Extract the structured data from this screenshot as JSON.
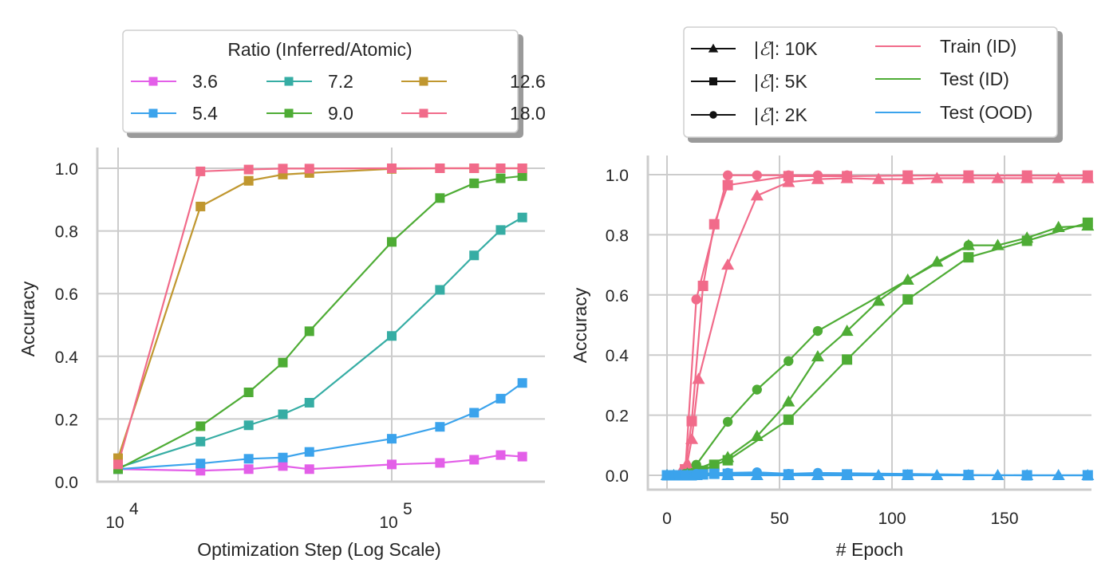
{
  "chart_data": [
    {
      "type": "line",
      "title": "",
      "xlabel": "Optimization Step (Log Scale)",
      "ylabel": "Accuracy",
      "xscale": "log",
      "xlim": [
        8500,
        340000
      ],
      "ylim": [
        -0.02,
        1.06
      ],
      "x_ticks": [
        {
          "value": 10000,
          "base": "10",
          "exp": "4"
        },
        {
          "value": 100000,
          "base": "10",
          "exp": "5"
        }
      ],
      "y_ticks": [
        "0.0",
        "0.2",
        "0.4",
        "0.6",
        "0.8",
        "1.0"
      ],
      "grid": true,
      "legend": {
        "title": "Ratio (Inferred/Atomic)",
        "placement": "top-center-outside",
        "columns": 3
      },
      "marker": "square",
      "x": [
        10000,
        20000,
        30000,
        40000,
        50000,
        100000,
        150000,
        200000,
        250000,
        300000
      ],
      "series": [
        {
          "name": "3.6",
          "color": "#e35fe8",
          "values": [
            0.04,
            0.035,
            0.04,
            0.05,
            0.04,
            0.055,
            0.06,
            0.07,
            0.085,
            0.08
          ]
        },
        {
          "name": "5.4",
          "color": "#3ba3ec",
          "values": [
            0.04,
            0.058,
            0.073,
            0.077,
            0.095,
            0.137,
            0.175,
            0.22,
            0.265,
            0.315
          ]
        },
        {
          "name": "7.2",
          "color": "#36ada4",
          "values": [
            0.045,
            0.128,
            0.18,
            0.215,
            0.252,
            0.465,
            0.612,
            0.722,
            0.803,
            0.843
          ]
        },
        {
          "name": "9.0",
          "color": "#4eac35",
          "values": [
            0.04,
            0.177,
            0.285,
            0.38,
            0.48,
            0.765,
            0.905,
            0.952,
            0.968,
            0.975
          ]
        },
        {
          "name": "12.6",
          "color": "#c0972f",
          "values": [
            0.075,
            0.878,
            0.96,
            0.98,
            0.985,
            0.998,
            1.0,
            1.0,
            1.0,
            1.0
          ]
        },
        {
          "name": "18.0",
          "color": "#f16b8a",
          "values": [
            0.055,
            0.99,
            0.996,
            0.999,
            0.999,
            1.0,
            1.0,
            1.0,
            1.0,
            1.0
          ]
        }
      ]
    },
    {
      "type": "line",
      "title": "",
      "xlabel": "# Epoch",
      "ylabel": "Accuracy",
      "xlim": [
        -9,
        195
      ],
      "ylim": [
        -0.05,
        1.06
      ],
      "x_ticks": [
        "0",
        "50",
        "100",
        "150"
      ],
      "y_ticks": [
        "0.0",
        "0.2",
        "0.4",
        "0.6",
        "0.8",
        "1.0"
      ],
      "grid": true,
      "legend": {
        "placement": "top-center-outside",
        "marker_entries": [
          {
            "label_prefix": "|",
            "label_symbol": "ℰ",
            "label_suffix": "|: 10K",
            "marker": "triangle"
          },
          {
            "label_prefix": "|",
            "label_symbol": "ℰ",
            "label_suffix": "|: 5K",
            "marker": "square"
          },
          {
            "label_prefix": "|",
            "label_symbol": "ℰ",
            "label_suffix": "|: 2K",
            "marker": "circle"
          }
        ],
        "color_entries": [
          {
            "label": "Train (ID)",
            "color": "#f16b8a"
          },
          {
            "label": "Test (ID)",
            "color": "#4eac35"
          },
          {
            "label": "Test (OOD)",
            "color": "#3ba3ec"
          }
        ]
      },
      "series": [
        {
          "name": "Train (ID), |E|: 10K",
          "color": "#f16b8a",
          "marker": "triangle",
          "x": [
            0,
            3,
            6,
            9,
            11,
            14,
            27,
            40,
            54,
            67,
            80,
            94,
            107,
            120,
            134,
            147,
            160,
            174,
            187
          ],
          "y": [
            0.0,
            0.0,
            0.01,
            0.04,
            0.12,
            0.32,
            0.7,
            0.93,
            0.975,
            0.985,
            0.988,
            0.985,
            0.985,
            0.988,
            0.988,
            0.988,
            0.988,
            0.988,
            0.988
          ]
        },
        {
          "name": "Train (ID), |E|: 5K",
          "color": "#f16b8a",
          "marker": "square",
          "x": [
            0,
            3,
            5,
            8,
            11,
            16,
            21,
            27,
            54,
            80,
            107,
            134,
            160,
            187
          ],
          "y": [
            0.0,
            0.0,
            0.0,
            0.02,
            0.18,
            0.63,
            0.835,
            0.965,
            0.995,
            0.995,
            0.997,
            0.997,
            0.997,
            0.997
          ]
        },
        {
          "name": "Train (ID), |E|: 2K",
          "color": "#f16b8a",
          "marker": "circle",
          "x": [
            0,
            3,
            5,
            8,
            13,
            27,
            40,
            54,
            67,
            80
          ],
          "y": [
            0.0,
            0.0,
            0.0,
            0.0,
            0.585,
            0.998,
            0.998,
            0.998,
            0.998,
            0.998
          ]
        },
        {
          "name": "Test (ID), |E|: 10K",
          "color": "#4eac35",
          "marker": "triangle",
          "x": [
            0,
            3,
            6,
            9,
            13,
            27,
            40,
            54,
            67,
            80,
            94,
            107,
            120,
            134,
            147,
            160,
            174,
            187
          ],
          "y": [
            0.0,
            0.0,
            0.0,
            0.005,
            0.02,
            0.06,
            0.13,
            0.245,
            0.395,
            0.48,
            0.58,
            0.65,
            0.71,
            0.765,
            0.765,
            0.79,
            0.825,
            0.83
          ]
        },
        {
          "name": "Test (ID), |E|: 5K",
          "color": "#4eac35",
          "marker": "square",
          "x": [
            0,
            3,
            5,
            8,
            11,
            16,
            21,
            27,
            54,
            80,
            107,
            134,
            160,
            187
          ],
          "y": [
            0.0,
            0.0,
            0.0,
            0.0,
            0.005,
            0.015,
            0.035,
            0.05,
            0.185,
            0.385,
            0.585,
            0.725,
            0.78,
            0.84
          ]
        },
        {
          "name": "Test (ID), |E|: 2K",
          "color": "#4eac35",
          "marker": "circle",
          "x": [
            0,
            3,
            5,
            8,
            13,
            27,
            40,
            54,
            67,
            134
          ],
          "y": [
            0.0,
            0.0,
            0.0,
            0.005,
            0.035,
            0.178,
            0.285,
            0.38,
            0.48,
            0.765
          ]
        },
        {
          "name": "Test (OOD), |E|: 10K",
          "color": "#3ba3ec",
          "marker": "triangle",
          "x": [
            0,
            3,
            6,
            9,
            13,
            27,
            40,
            54,
            67,
            80,
            94,
            107,
            120,
            134,
            147,
            160,
            174,
            187
          ],
          "y": [
            0.0,
            0.0,
            0.0,
            0.0,
            0.0,
            0.0,
            0.0,
            0.0,
            0.0,
            0.0,
            0.0,
            0.0,
            0.0,
            0.0,
            0.0,
            0.0,
            0.0,
            0.0
          ]
        },
        {
          "name": "Test (OOD), |E|: 5K",
          "color": "#3ba3ec",
          "marker": "square",
          "x": [
            0,
            3,
            5,
            8,
            11,
            16,
            21,
            27,
            54,
            80,
            107,
            134,
            160,
            187
          ],
          "y": [
            0.0,
            0.0,
            0.0,
            0.0,
            0.0,
            0.003,
            0.005,
            0.005,
            0.003,
            0.003,
            0.002,
            0.001,
            0.0,
            0.0
          ]
        },
        {
          "name": "Test (OOD), |E|: 2K",
          "color": "#3ba3ec",
          "marker": "circle",
          "x": [
            0,
            3,
            5,
            8,
            13,
            27,
            40,
            54,
            67,
            134
          ],
          "y": [
            0.0,
            0.0,
            0.0,
            0.0,
            0.005,
            0.008,
            0.01,
            0.005,
            0.008,
            0.002
          ]
        }
      ]
    }
  ]
}
